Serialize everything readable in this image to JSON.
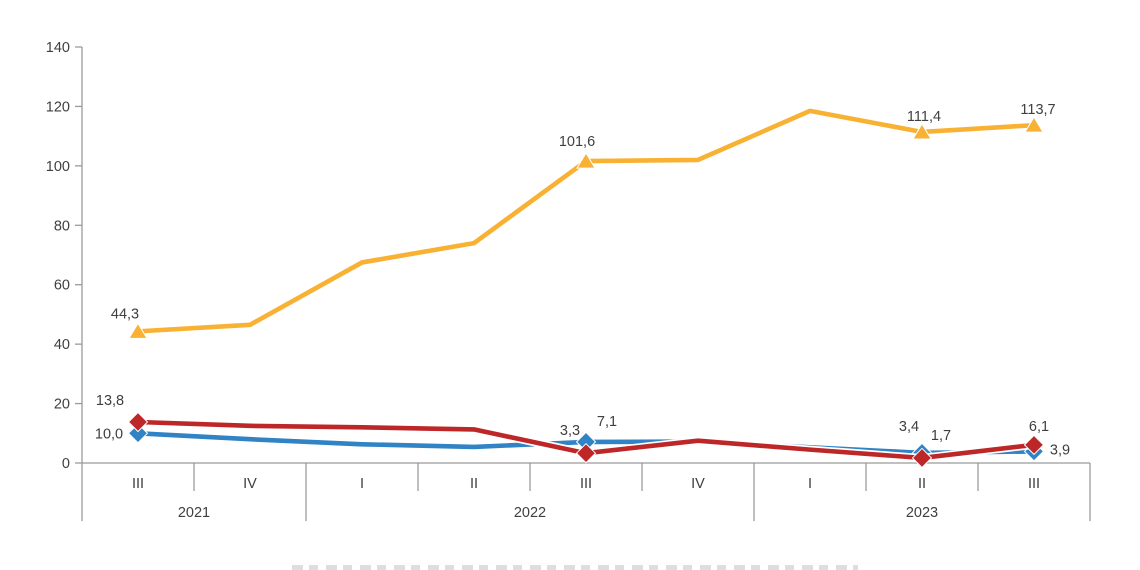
{
  "chart_data": {
    "type": "line",
    "title": "",
    "xlabel": "",
    "ylabel": "",
    "grid": false,
    "ylim": [
      0,
      140
    ],
    "yticks": [
      0,
      20,
      40,
      60,
      80,
      100,
      120,
      140
    ],
    "x_quarter_labels": [
      "III",
      "IV",
      "I",
      "II",
      "III",
      "IV",
      "I",
      "II",
      "III"
    ],
    "year_groups": [
      {
        "label": "2021",
        "quarters": 2
      },
      {
        "label": "2022",
        "quarters": 4
      },
      {
        "label": "2023",
        "quarters": 3
      }
    ],
    "decimal_separator": ",",
    "legend_position": "bottom (cut off at screenshot edge, illegible)",
    "series": [
      {
        "name": "yellow-index-series",
        "color": "#F8B133",
        "marker": "triangle",
        "values": [
          44.3,
          46.5,
          67.5,
          74.0,
          101.6,
          102.0,
          118.5,
          111.4,
          113.7
        ],
        "point_labels": [
          {
            "index": 0,
            "text": "44,3",
            "dx": -13,
            "dy": -13
          },
          {
            "index": 4,
            "text": "101,6",
            "dx": -9,
            "dy": -15
          },
          {
            "index": 7,
            "text": "111,4",
            "dx": 2,
            "dy": -11
          },
          {
            "index": 8,
            "text": "113,7",
            "dx": 4,
            "dy": -11
          }
        ]
      },
      {
        "name": "blue-series",
        "color": "#3083C4",
        "marker": "diamond",
        "values": [
          10.0,
          8.0,
          6.3,
          5.4,
          7.1,
          7.2,
          5.3,
          3.4,
          3.9
        ],
        "point_labels": [
          {
            "index": 0,
            "text": "10,0",
            "dx": -29,
            "dy": 5
          },
          {
            "index": 4,
            "text": "7,1",
            "dx": 21,
            "dy": -16
          },
          {
            "index": 7,
            "text": "3,4",
            "dx": -13,
            "dy": -22
          },
          {
            "index": 8,
            "text": "3,9",
            "dx": 26,
            "dy": 3
          }
        ]
      },
      {
        "name": "red-series",
        "color": "#BE2728",
        "marker": "diamond",
        "values": [
          13.8,
          12.5,
          12.0,
          11.3,
          3.3,
          7.5,
          4.5,
          1.7,
          6.1
        ],
        "point_labels": [
          {
            "index": 0,
            "text": "13,8",
            "dx": -28,
            "dy": -17
          },
          {
            "index": 4,
            "text": "3,3",
            "dx": -16,
            "dy": -18
          },
          {
            "index": 7,
            "text": "1,7",
            "dx": 19,
            "dy": -18
          },
          {
            "index": 8,
            "text": "6,1",
            "dx": 5,
            "dy": -14
          }
        ]
      }
    ],
    "note_unlabeled_values_estimated": true,
    "colors": {
      "axis": "#9a9a9a",
      "tick_text": "#3f3f3f",
      "background": "#ffffff"
    }
  }
}
